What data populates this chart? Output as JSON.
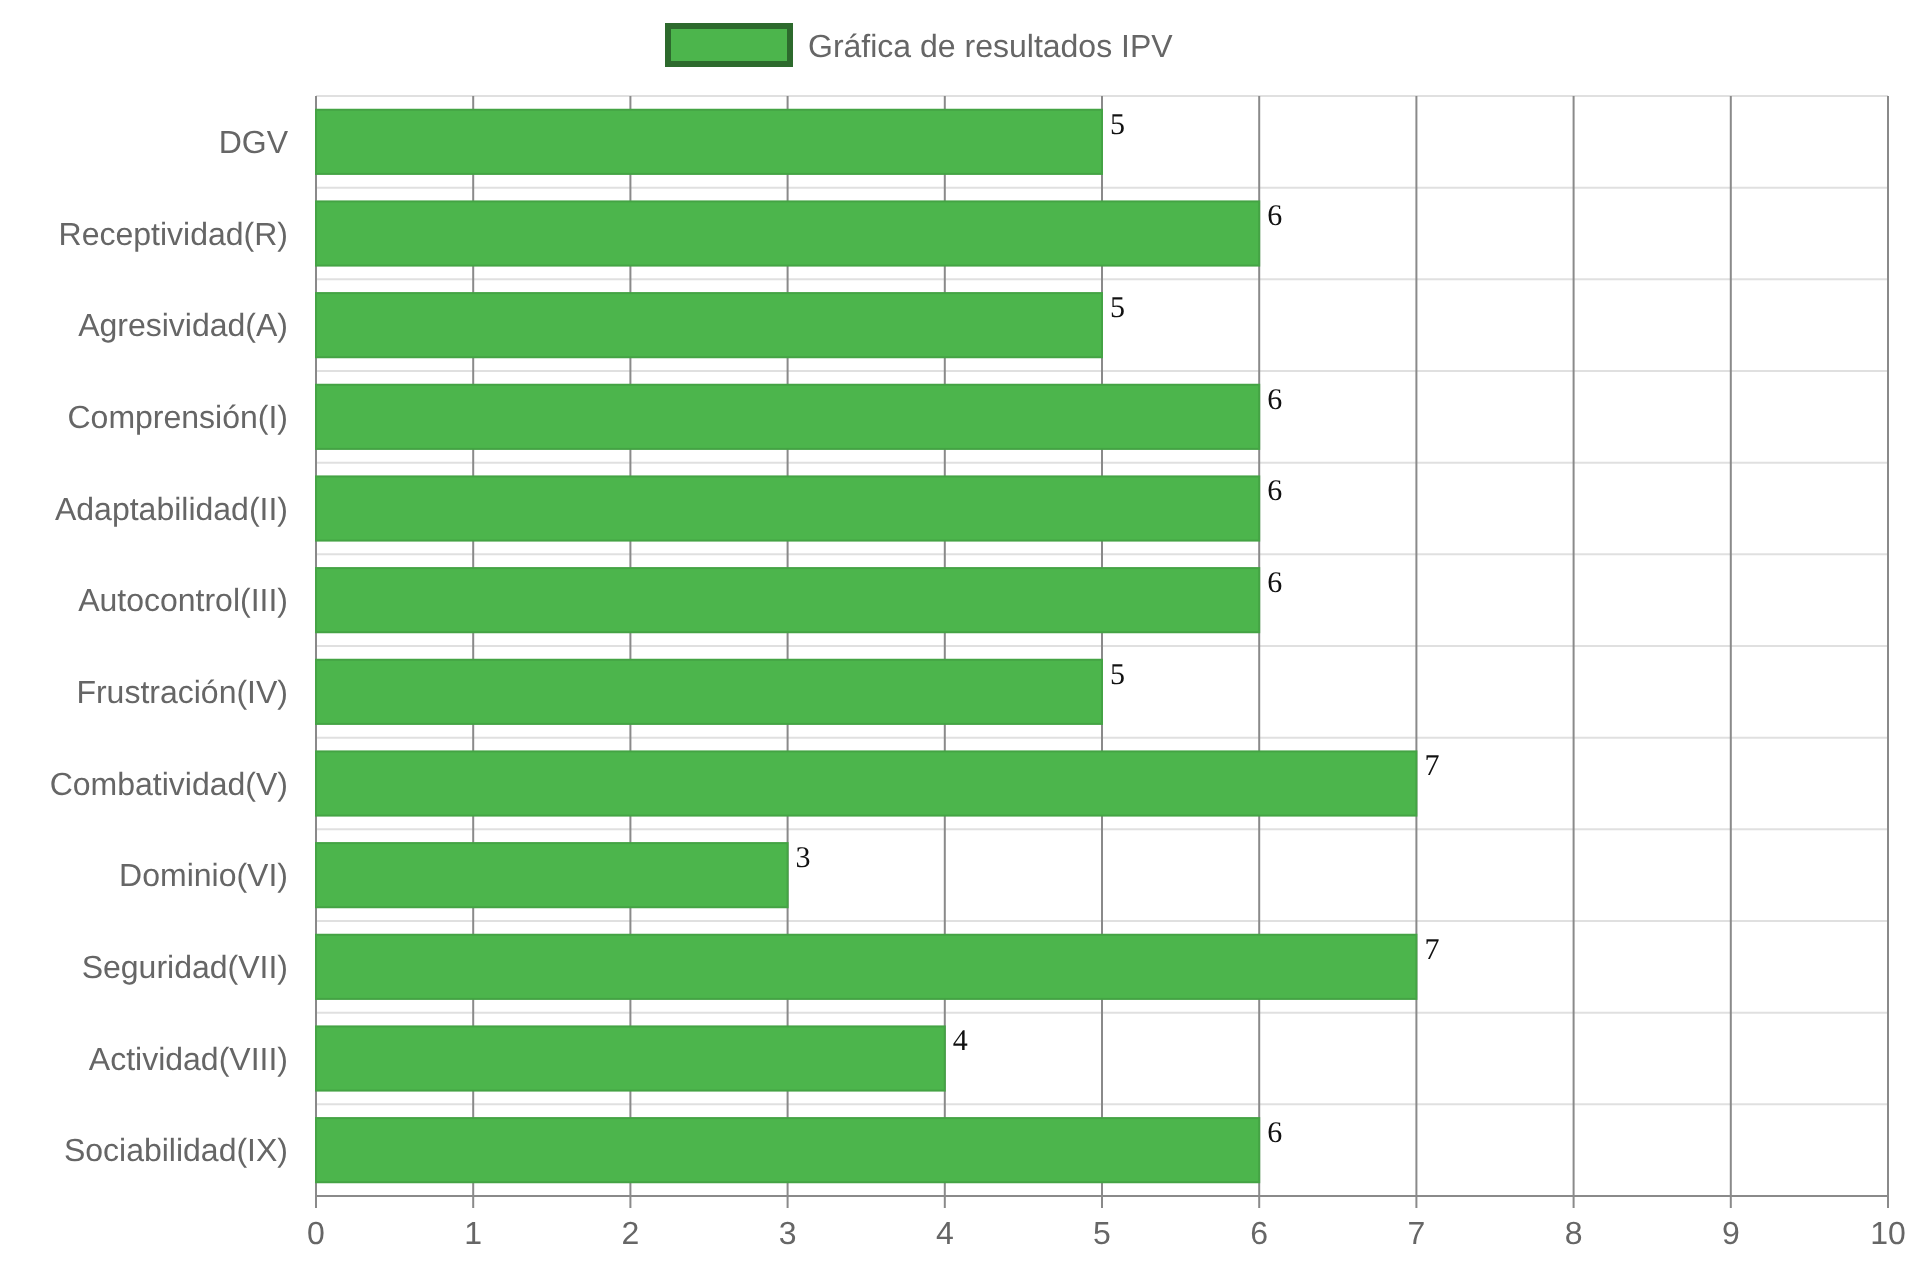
{
  "chart_data": {
    "type": "bar",
    "orientation": "horizontal",
    "categories": [
      "DGV",
      "Receptividad(R)",
      "Agresividad(A)",
      "Comprensión(I)",
      "Adaptabilidad(II)",
      "Autocontrol(III)",
      "Frustración(IV)",
      "Combatividad(V)",
      "Dominio(VI)",
      "Seguridad(VII)",
      "Actividad(VIII)",
      "Sociabilidad(IX)"
    ],
    "series": [
      {
        "name": "Gráfica de resultados IPV",
        "color": "#4cb54c",
        "values": [
          5,
          6,
          5,
          6,
          6,
          6,
          5,
          7,
          3,
          7,
          4,
          6
        ]
      }
    ],
    "xlim": [
      0,
      10
    ],
    "xticks": [
      0,
      1,
      2,
      3,
      4,
      5,
      6,
      7,
      8,
      9,
      10
    ],
    "grid": true,
    "legend": "top",
    "data_labels": true
  }
}
